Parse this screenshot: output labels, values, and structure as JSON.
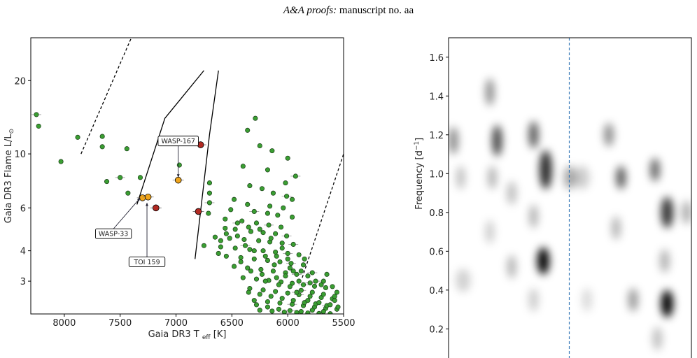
{
  "header": {
    "journal": "A&A proofs:",
    "manuscript": "manuscript no. aa"
  },
  "chart_data": [
    {
      "type": "scatter",
      "xlabel": "Gaia DR3 T",
      "xlabel_sub": "eff",
      "xlabel_unit": "[K]",
      "ylabel": "Gaia DR3 Flame L/L",
      "ylabel_symbol": "⊙",
      "x_reversed": true,
      "y_log": true,
      "xlim": [
        8300,
        5500
      ],
      "ylim": [
        2.2,
        30
      ],
      "x_ticks": [
        8000,
        7500,
        7000,
        6500,
        6000,
        5500
      ],
      "x_tick_labels": [
        "8000",
        "7500",
        "7000",
        "6500",
        "6000",
        "5500"
      ],
      "y_ticks": [
        3,
        4,
        6,
        10,
        20
      ],
      "y_tick_labels": [
        "3",
        "4",
        "6",
        "10",
        "20"
      ],
      "colors": {
        "field": "#3a9e32",
        "highlight": "#f0a51c",
        "red": "#b22a22",
        "edge": "#000000"
      },
      "annotations": [
        {
          "label": "WASP-167",
          "target": [
            6980,
            8.0
          ],
          "box_at": [
            6980,
            11.3
          ]
        },
        {
          "label": "WASP-33",
          "target": [
            7320,
            6.6
          ],
          "box_at": [
            7560,
            4.7
          ]
        },
        {
          "label": "TOI 159",
          "target": [
            7260,
            6.3
          ],
          "box_at": [
            7260,
            3.6
          ]
        }
      ],
      "lines": [
        {
          "style": "dashed",
          "points": [
            [
              7850,
              10
            ],
            [
              7400,
              30
            ]
          ]
        },
        {
          "style": "solid",
          "points": [
            [
              7350,
              6.2
            ],
            [
              7100,
              14
            ],
            [
              6750,
              22
            ]
          ]
        },
        {
          "style": "solid",
          "points": [
            [
              6830,
              3.7
            ],
            [
              6700,
              12
            ],
            [
              6620,
              22
            ]
          ]
        },
        {
          "style": "dashed",
          "points": [
            [
              5870,
              3.1
            ],
            [
              5500,
              10
            ]
          ]
        }
      ],
      "highlighted": [
        {
          "x": 7300,
          "y": 6.6,
          "color": "highlight"
        },
        {
          "x": 7250,
          "y": 6.65,
          "color": "highlight"
        },
        {
          "x": 6980,
          "y": 7.8,
          "color": "highlight"
        },
        {
          "x": 6780,
          "y": 10.9,
          "color": "red"
        },
        {
          "x": 7180,
          "y": 6.0,
          "color": "red"
        },
        {
          "x": 6800,
          "y": 5.8,
          "color": "red"
        }
      ],
      "field_points": [
        [
          8250,
          14.5
        ],
        [
          8230,
          13.0
        ],
        [
          8030,
          9.3
        ],
        [
          7880,
          11.7
        ],
        [
          7660,
          11.8
        ],
        [
          7660,
          10.7
        ],
        [
          7620,
          7.7
        ],
        [
          7500,
          8.0
        ],
        [
          7440,
          10.5
        ],
        [
          7430,
          6.9
        ],
        [
          7320,
          8.0
        ],
        [
          6970,
          9.0
        ],
        [
          6700,
          7.6
        ],
        [
          6700,
          6.9
        ],
        [
          6700,
          6.3
        ],
        [
          6710,
          5.7
        ],
        [
          6290,
          14.0
        ],
        [
          6360,
          12.5
        ],
        [
          6250,
          10.8
        ],
        [
          6140,
          10.3
        ],
        [
          6000,
          9.6
        ],
        [
          5930,
          8.1
        ],
        [
          6180,
          8.6
        ],
        [
          6400,
          8.9
        ],
        [
          6020,
          7.6
        ],
        [
          6340,
          7.4
        ],
        [
          6230,
          7.2
        ],
        [
          6130,
          6.9
        ],
        [
          6010,
          6.7
        ],
        [
          5960,
          6.5
        ],
        [
          6480,
          6.5
        ],
        [
          6360,
          6.2
        ],
        [
          6160,
          6.1
        ],
        [
          6040,
          6.0
        ],
        [
          6510,
          5.9
        ],
        [
          6300,
          5.8
        ],
        [
          6180,
          5.7
        ],
        [
          6090,
          5.6
        ],
        [
          5960,
          5.5
        ],
        [
          6560,
          5.4
        ],
        [
          6410,
          5.3
        ],
        [
          6280,
          5.2
        ],
        [
          6170,
          5.1
        ],
        [
          6060,
          5.0
        ],
        [
          6560,
          4.95
        ],
        [
          6470,
          4.9
        ],
        [
          6330,
          4.8
        ],
        [
          6220,
          4.75
        ],
        [
          6110,
          4.7
        ],
        [
          6010,
          4.6
        ],
        [
          6650,
          4.55
        ],
        [
          6520,
          4.5
        ],
        [
          6390,
          4.45
        ],
        [
          6260,
          4.4
        ],
        [
          6160,
          4.35
        ],
        [
          6050,
          4.3
        ],
        [
          5950,
          4.25
        ],
        [
          6750,
          4.2
        ],
        [
          6600,
          4.15
        ],
        [
          6470,
          4.1
        ],
        [
          6340,
          4.05
        ],
        [
          6220,
          4.0
        ],
        [
          6110,
          3.95
        ],
        [
          6000,
          3.9
        ],
        [
          5900,
          3.85
        ],
        [
          6550,
          3.8
        ],
        [
          6420,
          3.75
        ],
        [
          6300,
          3.7
        ],
        [
          6180,
          3.65
        ],
        [
          6070,
          3.6
        ],
        [
          5970,
          3.55
        ],
        [
          5860,
          3.5
        ],
        [
          6480,
          3.45
        ],
        [
          6360,
          3.4
        ],
        [
          6240,
          3.35
        ],
        [
          6130,
          3.3
        ],
        [
          6020,
          3.25
        ],
        [
          5920,
          3.2
        ],
        [
          5820,
          3.15
        ],
        [
          6400,
          3.1
        ],
        [
          6280,
          3.06
        ],
        [
          6170,
          3.02
        ],
        [
          6060,
          2.98
        ],
        [
          5960,
          2.94
        ],
        [
          5860,
          2.9
        ],
        [
          5760,
          2.86
        ],
        [
          5660,
          2.82
        ],
        [
          6340,
          2.8
        ],
        [
          6220,
          2.76
        ],
        [
          6110,
          2.72
        ],
        [
          6000,
          2.68
        ],
        [
          5900,
          2.64
        ],
        [
          5800,
          2.6
        ],
        [
          5700,
          2.57
        ],
        [
          5600,
          2.54
        ],
        [
          6300,
          2.5
        ],
        [
          6180,
          2.47
        ],
        [
          6070,
          2.44
        ],
        [
          5960,
          2.41
        ],
        [
          5860,
          2.38
        ],
        [
          5760,
          2.35
        ],
        [
          5660,
          2.32
        ],
        [
          5560,
          2.3
        ],
        [
          6250,
          2.28
        ],
        [
          6140,
          2.26
        ],
        [
          6030,
          2.24
        ],
        [
          5920,
          2.23
        ],
        [
          5820,
          2.22
        ],
        [
          5720,
          2.21
        ],
        [
          5620,
          2.205
        ],
        [
          6080,
          2.9
        ],
        [
          5980,
          2.85
        ],
        [
          5880,
          2.75
        ],
        [
          5780,
          2.7
        ],
        [
          5680,
          2.65
        ],
        [
          5580,
          2.6
        ],
        [
          6200,
          3.0
        ],
        [
          6100,
          3.1
        ],
        [
          5900,
          3.0
        ],
        [
          5800,
          2.95
        ],
        [
          5700,
          2.9
        ],
        [
          5600,
          2.85
        ],
        [
          6050,
          2.55
        ],
        [
          5950,
          2.5
        ],
        [
          5850,
          2.45
        ],
        [
          5750,
          2.42
        ],
        [
          5650,
          2.38
        ],
        [
          5550,
          2.35
        ],
        [
          6150,
          2.6
        ],
        [
          6250,
          2.65
        ],
        [
          6350,
          2.7
        ],
        [
          5980,
          3.4
        ],
        [
          5880,
          3.3
        ],
        [
          5780,
          3.25
        ],
        [
          5680,
          3.0
        ],
        [
          6420,
          3.6
        ],
        [
          6330,
          3.3
        ],
        [
          6230,
          3.2
        ],
        [
          6120,
          3.5
        ],
        [
          6020,
          3.15
        ],
        [
          5920,
          2.7
        ],
        [
          5820,
          2.5
        ],
        [
          5720,
          2.45
        ],
        [
          5620,
          2.4
        ],
        [
          6280,
          2.4
        ],
        [
          6180,
          2.35
        ],
        [
          6080,
          2.3
        ],
        [
          5980,
          2.27
        ],
        [
          5880,
          2.25
        ],
        [
          5780,
          2.28
        ],
        [
          5680,
          2.25
        ],
        [
          5580,
          2.5
        ],
        [
          6600,
          4.4
        ],
        [
          6450,
          4.6
        ],
        [
          6380,
          4.2
        ],
        [
          6300,
          4.0
        ],
        [
          6200,
          3.8
        ],
        [
          6100,
          3.8
        ],
        [
          6000,
          3.7
        ],
        [
          5950,
          3.3
        ],
        [
          5850,
          3.7
        ],
        [
          5750,
          3.0
        ],
        [
          5650,
          3.2
        ],
        [
          5560,
          2.7
        ],
        [
          6050,
          4.1
        ],
        [
          6150,
          4.5
        ],
        [
          6250,
          4.9
        ],
        [
          6350,
          5.0
        ],
        [
          6450,
          5.2
        ],
        [
          6550,
          4.7
        ],
        [
          6620,
          3.9
        ]
      ]
    },
    {
      "type": "heatmap",
      "ylabel": "Frequency [d",
      "ylabel_sup": "−1",
      "ylabel_tail": "]",
      "ylim": [
        0.05,
        1.7
      ],
      "y_ticks": [
        0.2,
        0.4,
        0.6,
        0.8,
        1.0,
        1.2,
        1.4,
        1.6
      ],
      "y_tick_labels": [
        "0.2",
        "0.4",
        "0.6",
        "0.8",
        "1.0",
        "1.2",
        "1.4",
        "1.6"
      ],
      "vline_fraction": 0.5,
      "colors": {
        "vline": "#3a7ab8",
        "blob": "#000000"
      },
      "blobs": [
        {
          "x": 0.02,
          "y": 1.17,
          "sx": 0.02,
          "sy": 0.07,
          "a": 0.45
        },
        {
          "x": 0.05,
          "y": 0.98,
          "sx": 0.018,
          "sy": 0.06,
          "a": 0.25
        },
        {
          "x": 0.06,
          "y": 0.45,
          "sx": 0.03,
          "sy": 0.06,
          "a": 0.18
        },
        {
          "x": 0.17,
          "y": 1.42,
          "sx": 0.018,
          "sy": 0.07,
          "a": 0.45
        },
        {
          "x": 0.2,
          "y": 1.17,
          "sx": 0.02,
          "sy": 0.08,
          "a": 0.75
        },
        {
          "x": 0.18,
          "y": 0.98,
          "sx": 0.018,
          "sy": 0.06,
          "a": 0.3
        },
        {
          "x": 0.17,
          "y": 0.7,
          "sx": 0.018,
          "sy": 0.06,
          "a": 0.2
        },
        {
          "x": 0.26,
          "y": 0.9,
          "sx": 0.02,
          "sy": 0.06,
          "a": 0.25
        },
        {
          "x": 0.26,
          "y": 0.52,
          "sx": 0.018,
          "sy": 0.06,
          "a": 0.3
        },
        {
          "x": 0.35,
          "y": 1.2,
          "sx": 0.02,
          "sy": 0.07,
          "a": 0.65
        },
        {
          "x": 0.4,
          "y": 1.02,
          "sx": 0.025,
          "sy": 0.1,
          "a": 0.85
        },
        {
          "x": 0.39,
          "y": 0.55,
          "sx": 0.025,
          "sy": 0.07,
          "a": 1.0
        },
        {
          "x": 0.35,
          "y": 0.78,
          "sx": 0.018,
          "sy": 0.06,
          "a": 0.3
        },
        {
          "x": 0.35,
          "y": 0.35,
          "sx": 0.02,
          "sy": 0.06,
          "a": 0.2
        },
        {
          "x": 0.5,
          "y": 0.98,
          "sx": 0.025,
          "sy": 0.06,
          "a": 0.35
        },
        {
          "x": 0.55,
          "y": 0.98,
          "sx": 0.03,
          "sy": 0.06,
          "a": 0.2
        },
        {
          "x": 0.57,
          "y": 0.35,
          "sx": 0.02,
          "sy": 0.06,
          "a": 0.15
        },
        {
          "x": 0.66,
          "y": 1.2,
          "sx": 0.02,
          "sy": 0.06,
          "a": 0.45
        },
        {
          "x": 0.71,
          "y": 0.98,
          "sx": 0.02,
          "sy": 0.06,
          "a": 0.65
        },
        {
          "x": 0.69,
          "y": 0.72,
          "sx": 0.018,
          "sy": 0.06,
          "a": 0.3
        },
        {
          "x": 0.76,
          "y": 0.35,
          "sx": 0.02,
          "sy": 0.06,
          "a": 0.4
        },
        {
          "x": 0.85,
          "y": 1.02,
          "sx": 0.02,
          "sy": 0.06,
          "a": 0.6
        },
        {
          "x": 0.9,
          "y": 0.8,
          "sx": 0.025,
          "sy": 0.08,
          "a": 0.8
        },
        {
          "x": 0.9,
          "y": 0.33,
          "sx": 0.025,
          "sy": 0.07,
          "a": 1.0
        },
        {
          "x": 0.89,
          "y": 0.55,
          "sx": 0.02,
          "sy": 0.06,
          "a": 0.3
        },
        {
          "x": 0.86,
          "y": 0.15,
          "sx": 0.02,
          "sy": 0.06,
          "a": 0.25
        },
        {
          "x": 0.98,
          "y": 0.8,
          "sx": 0.018,
          "sy": 0.06,
          "a": 0.35
        }
      ]
    }
  ]
}
